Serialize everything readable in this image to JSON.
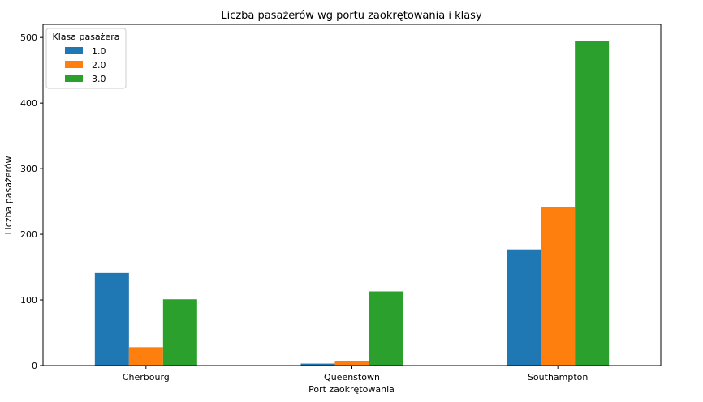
{
  "chart_data": {
    "type": "bar",
    "title": "Liczba pasażerów wg portu zaokrętowania i klasy",
    "xlabel": "Port zaokrętowania",
    "ylabel": "Liczba pasażerów",
    "categories": [
      "Cherbourg",
      "Queenstown",
      "Southampton"
    ],
    "series": [
      {
        "name": "1.0",
        "color": "#1f77b4",
        "values": [
          141,
          3,
          177
        ]
      },
      {
        "name": "2.0",
        "color": "#ff7f0e",
        "values": [
          28,
          7,
          242
        ]
      },
      {
        "name": "3.0",
        "color": "#2ca02c",
        "values": [
          101,
          113,
          495
        ]
      }
    ],
    "ylim": [
      0,
      520
    ],
    "yticks": [
      0,
      100,
      200,
      300,
      400,
      500
    ],
    "legend": {
      "title": "Klasa pasażera",
      "placement": "top-left"
    },
    "grid": false
  }
}
